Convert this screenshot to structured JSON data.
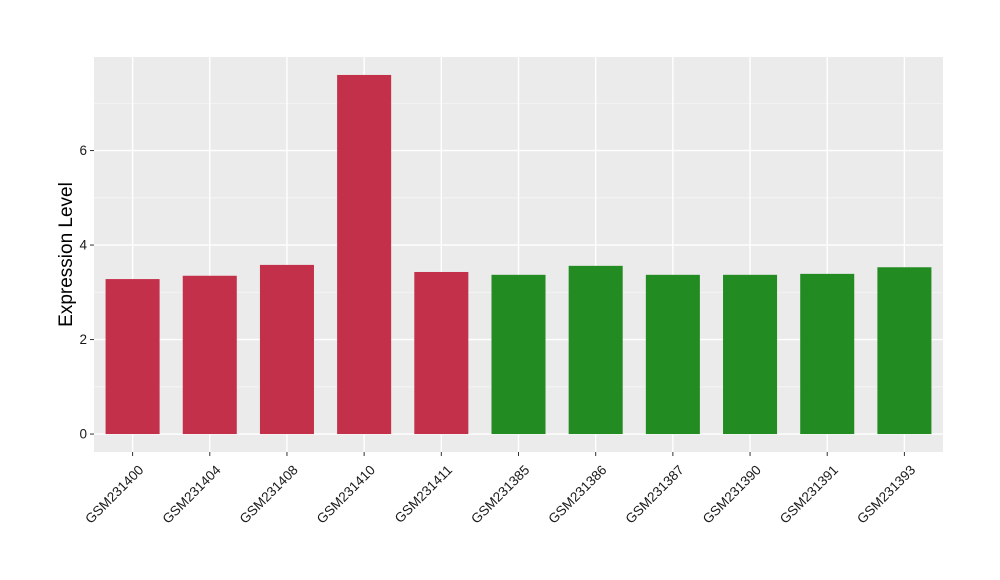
{
  "chart_data": {
    "type": "bar",
    "title": "",
    "xlabel": "",
    "ylabel": "Expression Level",
    "categories": [
      "GSM231400",
      "GSM231404",
      "GSM231408",
      "GSM231410",
      "GSM231411",
      "GSM231385",
      "GSM231386",
      "GSM231387",
      "GSM231390",
      "GSM231391",
      "GSM231393"
    ],
    "values": [
      3.28,
      3.35,
      3.58,
      7.6,
      3.43,
      3.37,
      3.56,
      3.37,
      3.37,
      3.39,
      3.53
    ],
    "bar_colors": [
      "#C3304A",
      "#C3304A",
      "#C3304A",
      "#C3304A",
      "#C3304A",
      "#228B22",
      "#228B22",
      "#228B22",
      "#228B22",
      "#228B22",
      "#228B22"
    ],
    "y_ticks": [
      0,
      2,
      4,
      6
    ],
    "ylim": [
      -0.38,
      7.98
    ],
    "grid": true,
    "legend": "none"
  },
  "colors": {
    "panel_background": "#EBEBEB",
    "grid_major": "#FFFFFF",
    "grid_minor": "#F5F5F5",
    "case_bars": "#C3304A",
    "control_bars": "#228B22"
  }
}
